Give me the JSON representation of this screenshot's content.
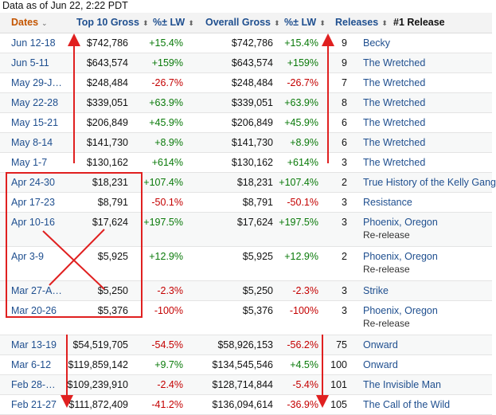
{
  "as_of": "Data as of Jun 22, 2:22 PDT",
  "columns": [
    {
      "label": "Dates",
      "sort_icon": "chevron-down-icon"
    },
    {
      "label": "Top 10 Gross",
      "sort_icon": "sort-icon"
    },
    {
      "label": "%± LW",
      "sort_icon": "sort-icon"
    },
    {
      "label": "Overall Gross",
      "sort_icon": "sort-icon"
    },
    {
      "label": "%± LW",
      "sort_icon": "sort-icon"
    },
    {
      "label": "Releases",
      "sort_icon": "sort-icon"
    },
    {
      "label": "#1 Release",
      "sort_icon": ""
    }
  ],
  "rows": [
    {
      "date": "Jun 12-18",
      "gross": "$742,786",
      "pct": "+15.4%",
      "overall": "$742,786",
      "pct2": "+15.4%",
      "releases": "9",
      "title": "Becky",
      "sub": ""
    },
    {
      "date": "Jun 5-11",
      "gross": "$643,574",
      "pct": "+159%",
      "overall": "$643,574",
      "pct2": "+159%",
      "releases": "9",
      "title": "The Wretched",
      "sub": ""
    },
    {
      "date": "May 29-J…",
      "gross": "$248,484",
      "pct": "-26.7%",
      "overall": "$248,484",
      "pct2": "-26.7%",
      "releases": "7",
      "title": "The Wretched",
      "sub": ""
    },
    {
      "date": "May 22-28",
      "gross": "$339,051",
      "pct": "+63.9%",
      "overall": "$339,051",
      "pct2": "+63.9%",
      "releases": "8",
      "title": "The Wretched",
      "sub": ""
    },
    {
      "date": "May 15-21",
      "gross": "$206,849",
      "pct": "+45.9%",
      "overall": "$206,849",
      "pct2": "+45.9%",
      "releases": "6",
      "title": "The Wretched",
      "sub": ""
    },
    {
      "date": "May 8-14",
      "gross": "$141,730",
      "pct": "+8.9%",
      "overall": "$141,730",
      "pct2": "+8.9%",
      "releases": "6",
      "title": "The Wretched",
      "sub": ""
    },
    {
      "date": "May 1-7",
      "gross": "$130,162",
      "pct": "+614%",
      "overall": "$130,162",
      "pct2": "+614%",
      "releases": "3",
      "title": "The Wretched",
      "sub": ""
    },
    {
      "date": "Apr 24-30",
      "gross": "$18,231",
      "pct": "+107.4%",
      "overall": "$18,231",
      "pct2": "+107.4%",
      "releases": "2",
      "title": "True History of the Kelly Gang",
      "sub": ""
    },
    {
      "date": "Apr 17-23",
      "gross": "$8,791",
      "pct": "-50.1%",
      "overall": "$8,791",
      "pct2": "-50.1%",
      "releases": "3",
      "title": "Resistance",
      "sub": ""
    },
    {
      "date": "Apr 10-16",
      "gross": "$17,624",
      "pct": "+197.5%",
      "overall": "$17,624",
      "pct2": "+197.5%",
      "releases": "3",
      "title": "Phoenix, Oregon",
      "sub": "Re-release"
    },
    {
      "date": "Apr 3-9",
      "gross": "$5,925",
      "pct": "+12.9%",
      "overall": "$5,925",
      "pct2": "+12.9%",
      "releases": "2",
      "title": "Phoenix, Oregon",
      "sub": "Re-release"
    },
    {
      "date": "Mar 27-A…",
      "gross": "$5,250",
      "pct": "-2.3%",
      "overall": "$5,250",
      "pct2": "-2.3%",
      "releases": "3",
      "title": "Strike",
      "sub": ""
    },
    {
      "date": "Mar 20-26",
      "gross": "$5,376",
      "pct": "-100%",
      "overall": "$5,376",
      "pct2": "-100%",
      "releases": "3",
      "title": "Phoenix, Oregon",
      "sub": "Re-release"
    },
    {
      "date": "Mar 13-19",
      "gross": "$54,519,705",
      "pct": "-54.5%",
      "overall": "$58,926,153",
      "pct2": "-56.2%",
      "releases": "75",
      "title": "Onward",
      "sub": ""
    },
    {
      "date": "Mar 6-12",
      "gross": "$119,859,142",
      "pct": "+9.7%",
      "overall": "$134,545,546",
      "pct2": "+4.5%",
      "releases": "100",
      "title": "Onward",
      "sub": ""
    },
    {
      "date": "Feb 28-…",
      "gross": "$109,239,910",
      "pct": "-2.4%",
      "overall": "$128,714,844",
      "pct2": "-5.4%",
      "releases": "101",
      "title": "The Invisible Man",
      "sub": ""
    },
    {
      "date": "Feb 21-27",
      "gross": "$111,872,409",
      "pct": "-41.2%",
      "overall": "$136,094,614",
      "pct2": "-36.9%",
      "releases": "105",
      "title": "The Call of the Wild",
      "sub": ""
    }
  ],
  "annotation_color": "#e02020",
  "positive_color": "#0a7a0a",
  "negative_color": "#c40000",
  "link_color": "#1f4f8f"
}
